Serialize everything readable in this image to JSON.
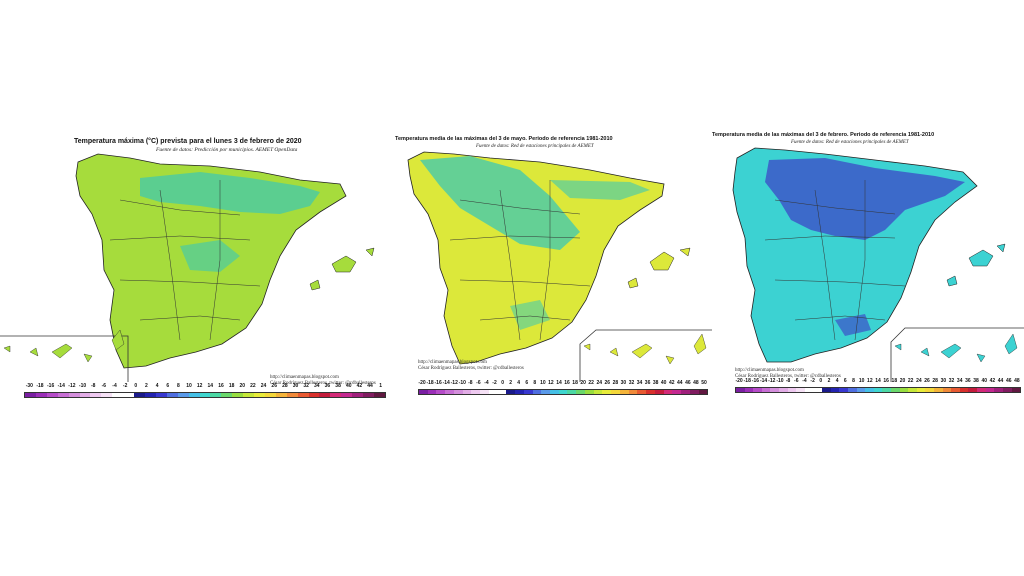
{
  "maps": [
    {
      "title": "Temperatura máxima (°C) prevista para el lunes 3 de febrero de 2020",
      "source": "Fuente de datos: Predicción por municipios. AEMET OpenData",
      "credit_line1": "http://climaenmapas.blogspot.com",
      "credit_line2": "César Rodríguez Ballesteros, twitter: @cdballesteros",
      "scale_labels": [
        "-30",
        "-18",
        "-16",
        "-14",
        "-12",
        "-10",
        "-8",
        "-6",
        "-4",
        "-2",
        "0",
        "2",
        "4",
        "6",
        "8",
        "10",
        "12",
        "14",
        "16",
        "18",
        "20",
        "22",
        "24",
        "26",
        "28",
        "30",
        "32",
        "34",
        "36",
        "38",
        "40",
        "42",
        "44",
        "1"
      ],
      "fill": "#a6dc3c",
      "fill_secondary": "#3cc8b4"
    },
    {
      "title": "Temperatura media de las máximas del 3 de mayo. Periodo de referencia 1981-2010",
      "source": "Fuente de datos: Red de estaciones principales de AEMET",
      "credit_line1": "http://climaenmapas.blogspot.com",
      "credit_line2": "César Rodríguez Ballesteros, twitter: @cdballesteros",
      "scale_labels": [
        "-20",
        "-18",
        "-16",
        "-14",
        "-12",
        "-10",
        "-8",
        "-6",
        "-4",
        "-2",
        "0",
        "2",
        "4",
        "6",
        "8",
        "10",
        "12",
        "14",
        "16",
        "18",
        "20",
        "22",
        "24",
        "26",
        "28",
        "30",
        "32",
        "34",
        "36",
        "38",
        "40",
        "42",
        "44",
        "46",
        "48",
        "50"
      ],
      "fill": "#dce83a",
      "fill_secondary": "#3cc8b4"
    },
    {
      "title": "Temperatura media de las máximas del 3 de febrero. Periodo de referencia 1981-2010",
      "source": "Fuente de datos: Red de estaciones principales de AEMET",
      "credit_line1": "http://climaenmapas.blogspot.com",
      "credit_line2": "César Rodríguez Ballesteros, twitter: @cdballesteros",
      "scale_labels": [
        "-20",
        "-18",
        "-16",
        "-14",
        "-12",
        "-10",
        "-8",
        "-6",
        "-4",
        "-2",
        "0",
        "2",
        "4",
        "6",
        "8",
        "10",
        "12",
        "14",
        "16",
        "18",
        "20",
        "22",
        "24",
        "26",
        "28",
        "30",
        "32",
        "34",
        "36",
        "38",
        "40",
        "42",
        "44",
        "46",
        "48"
      ],
      "fill": "#3cd2d2",
      "fill_secondary": "#3c50c8"
    }
  ],
  "scale_colors": [
    "#7a1fa2",
    "#9b2fb8",
    "#b54cc8",
    "#c76fd4",
    "#d48fdc",
    "#e2ade6",
    "#eec9f0",
    "#f6e2f6",
    "#ffffff",
    "#ffffff",
    "#1a1a8a",
    "#2323b0",
    "#3838d0",
    "#4f6ee0",
    "#5a9aea",
    "#45c0e6",
    "#3fd6cf",
    "#4cd8a4",
    "#6ad86c",
    "#98de40",
    "#c6e83a",
    "#e8ec3a",
    "#f4d83a",
    "#f4b43a",
    "#f08a3a",
    "#e85a32",
    "#d8302c",
    "#c41c3c",
    "#d42a78",
    "#c42890",
    "#a0207c",
    "#801c60",
    "#601840"
  ]
}
